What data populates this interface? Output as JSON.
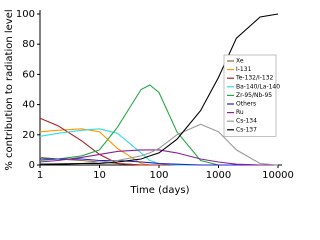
{
  "chart_data": {
    "type": "line",
    "x_label": "Time (days)",
    "y_label": "% contribution to radiation level",
    "x": [
      1,
      2,
      5,
      10,
      20,
      50,
      70,
      100,
      200,
      500,
      1000,
      2000,
      5000,
      10000
    ],
    "xlim": [
      1,
      10000
    ],
    "xticks": [
      1,
      10,
      100,
      1000,
      10000
    ],
    "log_x": true,
    "ylim": [
      0,
      100
    ],
    "yticks": [
      0,
      20,
      40,
      60,
      80,
      100
    ],
    "legend": "right",
    "series": [
      {
        "name": "Xe",
        "color": "#996633",
        "values": [
          5,
          4,
          3,
          2,
          1,
          0,
          0,
          0,
          0,
          0,
          0,
          0,
          0,
          0
        ]
      },
      {
        "name": "I-131",
        "color": "#ff9900",
        "values": [
          22,
          23,
          24,
          22,
          11,
          1,
          0,
          0,
          0,
          0,
          0,
          0,
          0,
          0
        ]
      },
      {
        "name": "Te-132/I-132",
        "color": "#aa2222",
        "values": [
          31,
          26,
          16,
          7,
          1,
          0,
          0,
          0,
          0,
          0,
          0,
          0,
          0,
          0
        ]
      },
      {
        "name": "Ba-140/La-140",
        "color": "#33dddd",
        "values": [
          19,
          21,
          23,
          24,
          21,
          8,
          3,
          1,
          0,
          0,
          0,
          0,
          0,
          0
        ]
      },
      {
        "name": "Zr-95/Nb-95",
        "color": "#22aa44",
        "values": [
          3,
          4,
          6,
          10,
          25,
          50,
          53,
          48,
          22,
          3,
          0,
          0,
          0,
          0
        ]
      },
      {
        "name": "Others",
        "color": "#2222cc",
        "values": [
          4,
          4,
          4,
          3,
          3,
          2,
          1.5,
          1,
          0.5,
          0,
          0,
          0,
          0,
          0
        ]
      },
      {
        "name": "Ru",
        "color": "#882299",
        "values": [
          2,
          3,
          5,
          7,
          9,
          10,
          10,
          10,
          8,
          4,
          2,
          0.5,
          0,
          0
        ]
      },
      {
        "name": "Cs-134",
        "color": "#999999",
        "values": [
          0.5,
          1,
          1,
          2,
          3,
          6,
          8,
          11,
          20,
          27,
          22,
          10,
          1,
          0
        ]
      },
      {
        "name": "Cs-137",
        "color": "#000000",
        "values": [
          0.5,
          0.5,
          1,
          1,
          2,
          4,
          6,
          8,
          17,
          36,
          58,
          84,
          98,
          100
        ]
      }
    ]
  }
}
